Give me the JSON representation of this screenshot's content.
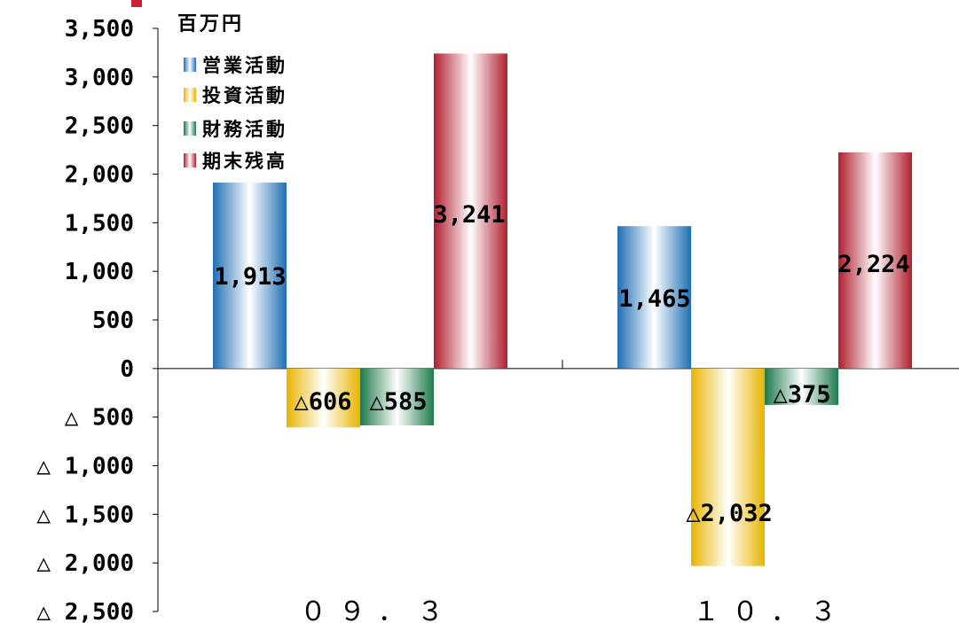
{
  "chart_data": {
    "type": "bar",
    "unit_label": "百万円",
    "categories": [
      "09.3",
      "10.3"
    ],
    "category_labels": [
      "０９．３",
      "１０．３"
    ],
    "series": [
      {
        "name": "営業活動",
        "values": [
          1913,
          1465
        ],
        "labels": [
          "1,913",
          "1,465"
        ],
        "color": "#1f6fb5"
      },
      {
        "name": "投資活動",
        "values": [
          -606,
          -2032
        ],
        "labels": [
          "△606",
          "△2,032"
        ],
        "color": "#e8b400"
      },
      {
        "name": "財務活動",
        "values": [
          -585,
          -375
        ],
        "labels": [
          "△585",
          "△375"
        ],
        "color": "#1e7a4c"
      },
      {
        "name": "期末残高",
        "values": [
          3241,
          2224
        ],
        "labels": [
          "3,241",
          "2,224"
        ],
        "color": "#b01e2f"
      }
    ],
    "ylim": [
      -2500,
      3500
    ],
    "yticks": [
      3500,
      3000,
      2500,
      2000,
      1500,
      1000,
      500,
      0,
      -500,
      -1000,
      -1500,
      -2000,
      -2500
    ],
    "ytick_labels": [
      "3,500",
      "3,000",
      "2,500",
      "2,000",
      "1,500",
      "1,000",
      "500",
      "0",
      "△ 500",
      "△ 1,000",
      "△ 1,500",
      "△ 2,000",
      "△ 2,500"
    ],
    "legend_position": "top-left",
    "grid": false
  },
  "colors": {
    "accent": "#d01f35"
  }
}
